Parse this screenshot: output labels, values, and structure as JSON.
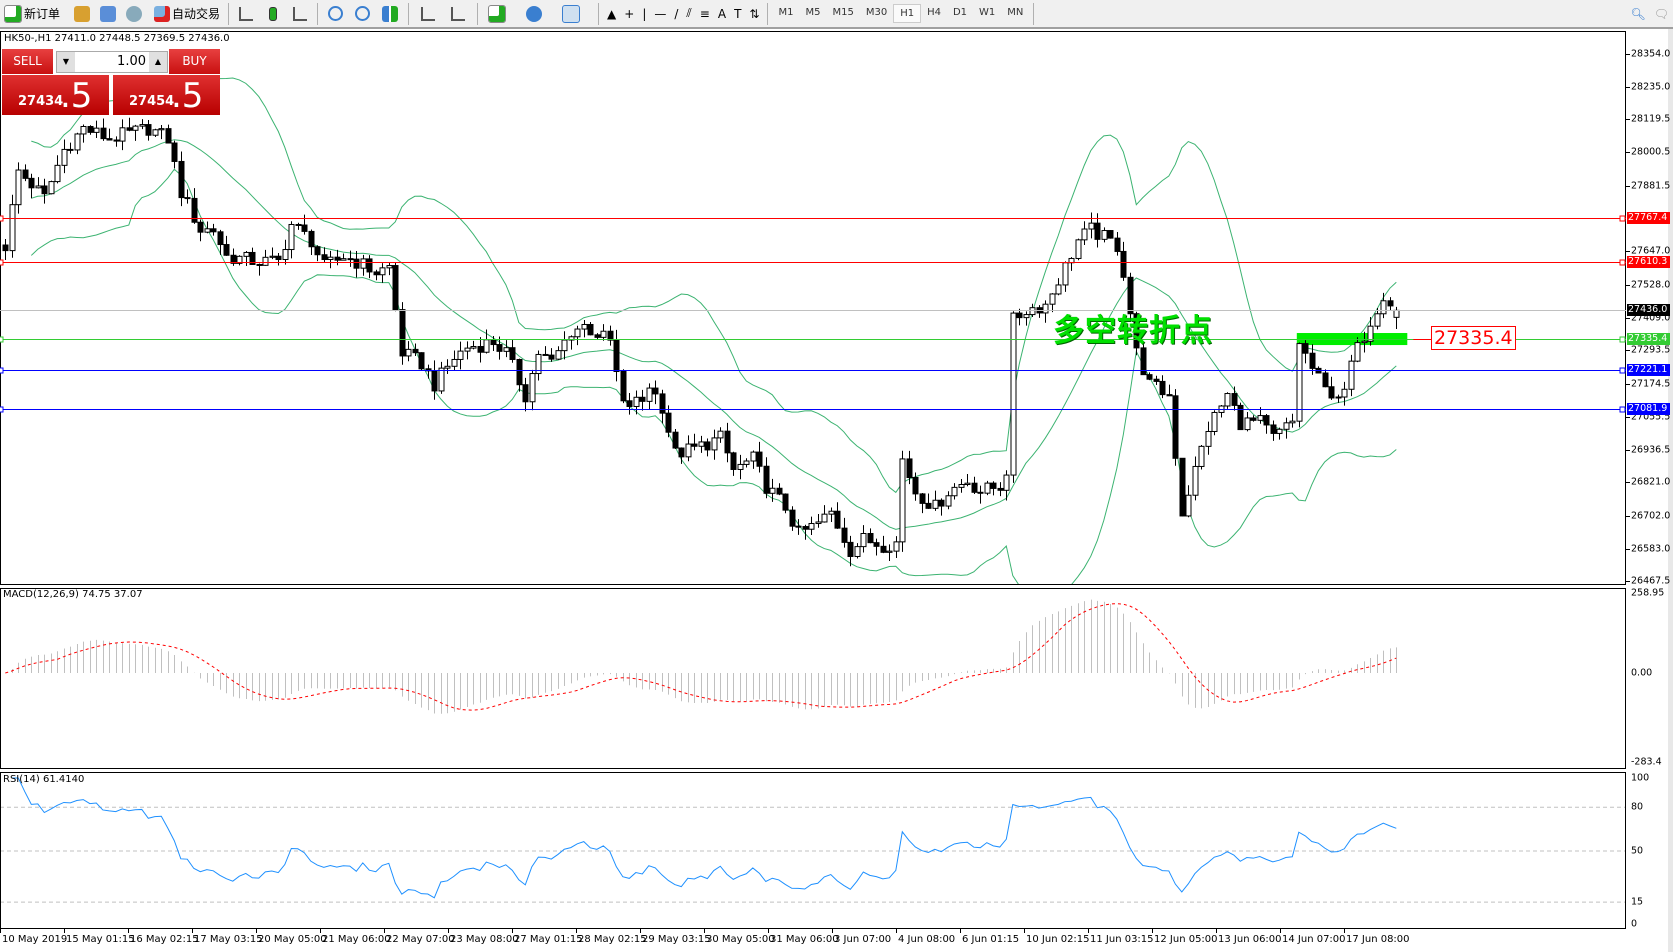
{
  "toolbar": {
    "new_order": "新订单",
    "auto_trade": "自动交易",
    "timeframes": [
      "M1",
      "M5",
      "M15",
      "M30",
      "H1",
      "H4",
      "D1",
      "W1",
      "MN"
    ],
    "active_timeframe": "H1",
    "icons": [
      "new-order-icon",
      "history-icon",
      "navigator-icon",
      "signals-icon",
      "auto-trade-icon",
      "bar-chart-icon",
      "candlestick-icon",
      "line-chart-icon",
      "zoom-in-icon",
      "zoom-out-icon",
      "tile-icon",
      "autoscroll-icon",
      "chart-shift-icon",
      "indicators-icon",
      "periods-icon",
      "templates-icon",
      "cursor-icon",
      "crosshair-icon",
      "vertical-line-icon",
      "horizontal-line-icon",
      "trendline-icon",
      "equidistant-channel-icon",
      "fibonacci-icon",
      "text-icon",
      "text-label-icon",
      "arrows-icon",
      "search-icon",
      "chat-icon"
    ]
  },
  "chart": {
    "symbol_info": "HK50-,H1  27411.0 27448.5 27369.5 27436.0"
  },
  "trade_panel": {
    "sell_label": "SELL",
    "buy_label": "BUY",
    "lot": "1.00",
    "sell_price_main": "27434",
    "sell_price_frac": ".5",
    "buy_price_main": "27454",
    "buy_price_frac": ".5"
  },
  "annotation": {
    "text": "多空转折点",
    "price_label": "27335.4",
    "text_color": "#00e000",
    "zone_color": "#00ee00"
  },
  "levels": [
    {
      "price": 27767.4,
      "label": "27767.4",
      "color": "#ff0000"
    },
    {
      "price": 27610.3,
      "label": "27610.3",
      "color": "#ff0000"
    },
    {
      "price": 27436.0,
      "label": "27436.0",
      "color": "#000000",
      "line_color": "#c0c0c0"
    },
    {
      "price": 27335.4,
      "label": "27335.4",
      "color": "#33cc33"
    },
    {
      "price": 27221.1,
      "label": "27221.1",
      "color": "#0000ff"
    },
    {
      "price": 27081.9,
      "label": "27081.9",
      "color": "#0000ff"
    }
  ],
  "price_axis": [
    "28354.0",
    "28235.0",
    "28119.5",
    "28000.5",
    "27881.5",
    "27647.0",
    "27528.0",
    "27409.0",
    "27293.5",
    "27174.5",
    "27055.5",
    "26936.5",
    "26821.0",
    "26702.0",
    "26583.0",
    "26467.5"
  ],
  "time_axis": [
    "10 May 2019",
    "15 May 01:15",
    "16 May 02:15",
    "17 May 03:15",
    "20 May 05:00",
    "21 May 06:00",
    "22 May 07:00",
    "23 May 08:00",
    "27 May 01:15",
    "28 May 02:15",
    "29 May 03:15",
    "30 May 05:00",
    "31 May 06:00",
    "3 Jun 07:00",
    "4 Jun 08:00",
    "6 Jun 01:15",
    "10 Jun 02:15",
    "11 Jun 03:15",
    "12 Jun 05:00",
    "13 Jun 06:00",
    "14 Jun 07:00",
    "17 Jun 08:00"
  ],
  "macd": {
    "label": "MACD(12,26,9) 74.75 37.07",
    "ticks": [
      "258.95",
      "0.00",
      "-283.4"
    ]
  },
  "rsi": {
    "label": "RSI(14) 61.4140",
    "ticks": [
      "100",
      "80",
      "50",
      "15",
      "0"
    ]
  },
  "chart_data": {
    "type": "candlestick",
    "timeframe": "H1",
    "indicators": [
      "Bollinger Bands",
      "MACD(12,26,9)",
      "RSI(14)"
    ],
    "close_path": [
      [
        0,
        27667
      ],
      [
        2,
        27934
      ],
      [
        6,
        27839
      ],
      [
        9,
        28010
      ],
      [
        12,
        28087
      ],
      [
        16,
        28049
      ],
      [
        19,
        28068
      ],
      [
        22,
        28087
      ],
      [
        25,
        28049
      ],
      [
        27,
        27858
      ],
      [
        30,
        27724
      ],
      [
        32,
        27724
      ],
      [
        34,
        27629
      ],
      [
        39,
        27610
      ],
      [
        42,
        27610
      ],
      [
        44,
        27743
      ],
      [
        47,
        27686
      ],
      [
        49,
        27591
      ],
      [
        52,
        27629
      ],
      [
        54,
        27610
      ],
      [
        57,
        27572
      ],
      [
        59,
        27591
      ],
      [
        61,
        27285
      ],
      [
        64,
        27247
      ],
      [
        66,
        27171
      ],
      [
        69,
        27266
      ],
      [
        71,
        27304
      ],
      [
        75,
        27323
      ],
      [
        77,
        27285
      ],
      [
        80,
        27132
      ],
      [
        82,
        27285
      ],
      [
        84,
        27247
      ],
      [
        87,
        27362
      ],
      [
        89,
        27381
      ],
      [
        93,
        27323
      ],
      [
        95,
        27094
      ],
      [
        98,
        27113
      ],
      [
        99,
        27171
      ],
      [
        101,
        27094
      ],
      [
        103,
        26923
      ],
      [
        106,
        26942
      ],
      [
        108,
        26961
      ],
      [
        110,
        26980
      ],
      [
        112,
        26865
      ],
      [
        115,
        26904
      ],
      [
        117,
        26808
      ],
      [
        120,
        26732
      ],
      [
        122,
        26636
      ],
      [
        125,
        26674
      ],
      [
        127,
        26713
      ],
      [
        130,
        26579
      ],
      [
        132,
        26617
      ],
      [
        135,
        26598
      ],
      [
        137,
        26606
      ],
      [
        138,
        26904
      ],
      [
        140,
        26789
      ],
      [
        143,
        26732
      ],
      [
        145,
        26789
      ],
      [
        148,
        26827
      ],
      [
        150,
        26789
      ],
      [
        153,
        26808
      ],
      [
        154,
        26865
      ],
      [
        155,
        27400
      ],
      [
        157,
        27438
      ],
      [
        160,
        27457
      ],
      [
        163,
        27591
      ],
      [
        165,
        27686
      ],
      [
        167,
        27724
      ],
      [
        171,
        27667
      ],
      [
        172,
        27572
      ],
      [
        174,
        27285
      ],
      [
        176,
        27171
      ],
      [
        179,
        27132
      ],
      [
        181,
        26713
      ],
      [
        183,
        26865
      ],
      [
        185,
        27017
      ],
      [
        188,
        27132
      ],
      [
        190,
        27036
      ],
      [
        193,
        27036
      ],
      [
        195,
        26980
      ],
      [
        198,
        27036
      ],
      [
        199,
        27323
      ],
      [
        201,
        27228
      ],
      [
        203,
        27151
      ],
      [
        206,
        27132
      ],
      [
        207,
        27247
      ],
      [
        210,
        27400
      ],
      [
        212,
        27495
      ],
      [
        214,
        27436
      ]
    ],
    "last_bar": {
      "open": 27411.0,
      "high": 27448.5,
      "low": 27369.5,
      "close": 27436.0
    },
    "zone": {
      "top": 27355,
      "bottom": 27312,
      "from_bar": 199,
      "to_bar": 216
    },
    "price_range": [
      26467.5,
      28354.0
    ],
    "macd_range": [
      -283.4,
      258.95
    ],
    "rsi_levels": [
      80,
      50,
      15
    ]
  }
}
